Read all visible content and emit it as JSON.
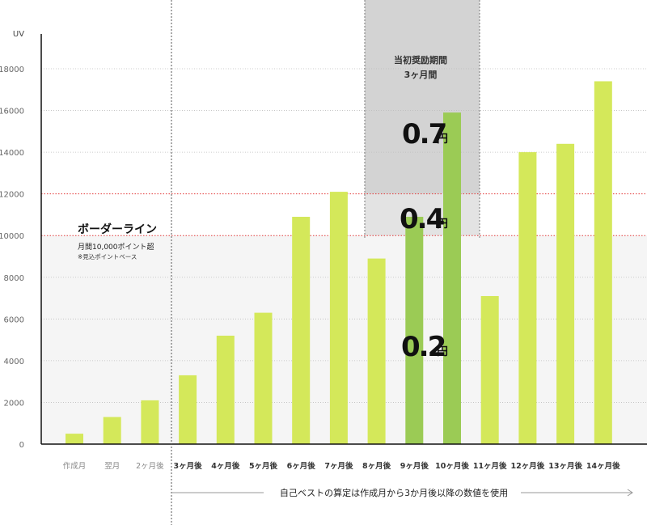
{
  "chart_data": {
    "type": "bar",
    "ylabel": "UV",
    "ylim": [
      0,
      19000
    ],
    "yticks": [
      0,
      2000,
      4000,
      6000,
      8000,
      10000,
      12000,
      14000,
      16000,
      18000
    ],
    "grid": true,
    "categories": [
      "作成月",
      "翌月",
      "2ヶ月後",
      "3ヶ月後",
      "4ヶ月後",
      "5ヶ月後",
      "6ヶ月後",
      "7ヶ月後",
      "8ヶ月後",
      "9ヶ月後",
      "10ヶ月後",
      "11ヶ月後",
      "12ヶ月後",
      "13ヶ月後",
      "14ヶ月後"
    ],
    "muted_categories": [
      0,
      1,
      2
    ],
    "values": [
      500,
      1300,
      2100,
      3300,
      5200,
      6300,
      10900,
      12100,
      8900,
      10900,
      15900,
      7100,
      14000,
      14400,
      17400
    ],
    "highlighted_bars": [
      9,
      10
    ],
    "reference_lines": [
      10000,
      12000
    ],
    "colors": {
      "bar": "#d4e85a",
      "bar_highlight": "#9bcb55",
      "band": "#d3d3d3",
      "below_line_fill": "#f5f5f5",
      "ref_line": "#e23b3b"
    }
  },
  "annotations": {
    "incentive_band": {
      "title_line1": "当初奨励期間",
      "title_line2": "3ヶ月間"
    },
    "border": {
      "title": "ボーダーライン",
      "subtitle": "月間10,000ポイント超",
      "note": "※見込ポイントベース"
    },
    "rates": [
      {
        "value": "0.7",
        "unit": "円"
      },
      {
        "value": "0.4",
        "unit": "円"
      },
      {
        "value": "0.2",
        "unit": "円"
      }
    ],
    "bottom_note": "自己ベストの算定は作成月から3か月後以降の数値を使用"
  }
}
